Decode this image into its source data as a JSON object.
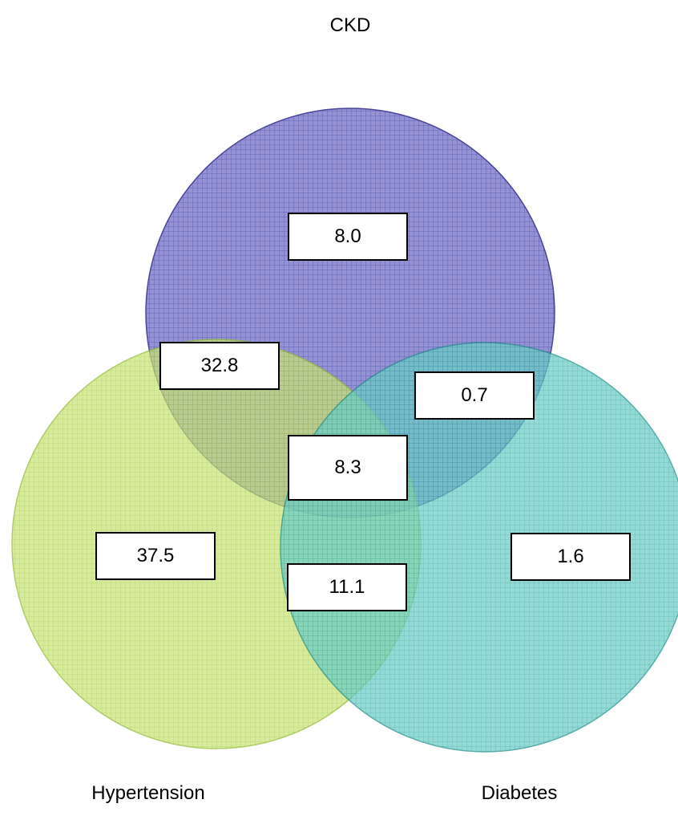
{
  "sets": [
    {
      "id": "ckd",
      "label": "CKD",
      "color": "#4a46a8"
    },
    {
      "id": "hypertension",
      "label": "Hypertension",
      "color": "#a9d13a"
    },
    {
      "id": "diabetes",
      "label": "Diabetes",
      "color": "#27a7a2"
    }
  ],
  "regions": {
    "ckd_only": "8.0",
    "ckd_hypertension": "32.8",
    "ckd_diabetes": "0.7",
    "all_three": "8.3",
    "hypertension_only": "37.5",
    "hypertension_diabetes": "11.1",
    "diabetes_only": "1.6"
  }
}
